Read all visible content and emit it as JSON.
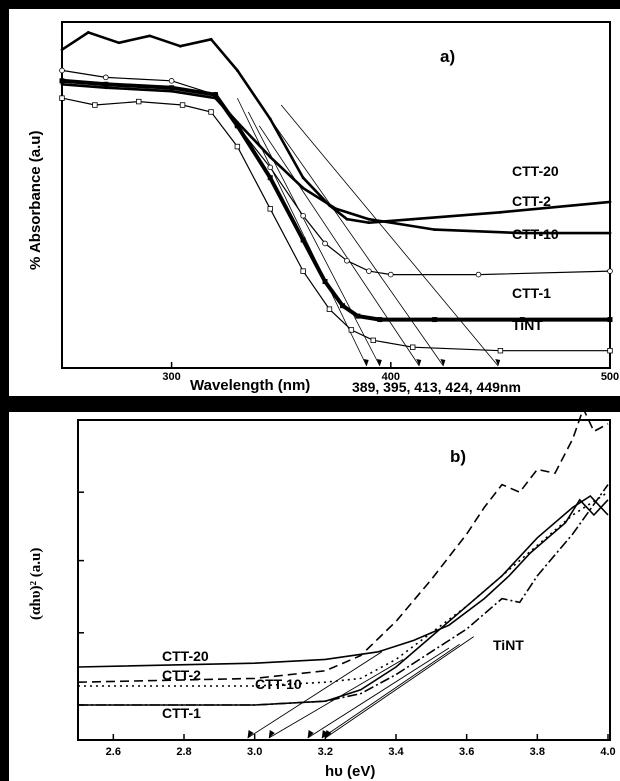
{
  "chart_data": [
    {
      "type": "line",
      "panel_label": "a)",
      "xlabel": "Wavelength (nm)",
      "ylabel": "% Absorbance (a.u)",
      "xlim": [
        250,
        500
      ],
      "ylim": [
        0,
        1.0
      ],
      "xticks": [
        300,
        400,
        500
      ],
      "annotation": "389, 395,  413, 424, 449nm",
      "edges": [
        389,
        395,
        413,
        424,
        449
      ],
      "series": [
        {
          "name": "CTT-20",
          "style": "solid-thick",
          "x": [
            250,
            262,
            276,
            290,
            304,
            318,
            330,
            345,
            360,
            372,
            380,
            390,
            410,
            450,
            500
          ],
          "y": [
            0.92,
            0.97,
            0.94,
            0.96,
            0.93,
            0.95,
            0.86,
            0.72,
            0.55,
            0.47,
            0.43,
            0.42,
            0.43,
            0.45,
            0.48
          ]
        },
        {
          "name": "CTT-2",
          "style": "solid",
          "x": [
            250,
            270,
            300,
            320,
            330,
            345,
            360,
            375,
            390,
            420,
            460,
            500
          ],
          "y": [
            0.82,
            0.81,
            0.8,
            0.78,
            0.71,
            0.61,
            0.52,
            0.46,
            0.43,
            0.4,
            0.39,
            0.39
          ]
        },
        {
          "name": "CTT-10",
          "style": "open-circles",
          "x": [
            250,
            270,
            300,
            320,
            330,
            345,
            360,
            370,
            380,
            390,
            400,
            440,
            500
          ],
          "y": [
            0.86,
            0.84,
            0.83,
            0.79,
            0.7,
            0.58,
            0.44,
            0.36,
            0.31,
            0.28,
            0.27,
            0.27,
            0.28
          ]
        },
        {
          "name": "CTT-1",
          "style": "filled-squares",
          "x": [
            250,
            270,
            300,
            320,
            330,
            345,
            360,
            370,
            378,
            385,
            395,
            420,
            460,
            500
          ],
          "y": [
            0.83,
            0.82,
            0.81,
            0.79,
            0.7,
            0.55,
            0.37,
            0.25,
            0.18,
            0.15,
            0.14,
            0.14,
            0.14,
            0.14
          ]
        },
        {
          "name": "TiNT",
          "style": "open-squares",
          "x": [
            250,
            265,
            285,
            305,
            318,
            330,
            345,
            360,
            372,
            382,
            392,
            410,
            450,
            500
          ],
          "y": [
            0.78,
            0.76,
            0.77,
            0.76,
            0.74,
            0.64,
            0.46,
            0.28,
            0.17,
            0.11,
            0.08,
            0.06,
            0.05,
            0.05
          ]
        }
      ]
    },
    {
      "type": "line",
      "panel_label": "b)",
      "xlabel": "hυ (eV)",
      "ylabel": "(αhυ)² (a.u)",
      "xlim": [
        2.5,
        4.0
      ],
      "ylim": [
        0,
        1.0
      ],
      "xticks": [
        "2.6",
        "2.8",
        "3.0",
        "3.2",
        "3.4",
        "3.6",
        "3.8",
        "4.0"
      ],
      "edges": [
        2.98,
        3.04,
        3.15,
        3.19,
        3.2
      ],
      "series": [
        {
          "name": "CTT-20",
          "style": "solid",
          "x": [
            2.5,
            3.0,
            3.2,
            3.35,
            3.45,
            3.55,
            3.65,
            3.72,
            3.78,
            3.83,
            3.88,
            3.92,
            3.96,
            4.0
          ],
          "y": [
            0.1,
            0.11,
            0.12,
            0.14,
            0.17,
            0.21,
            0.28,
            0.34,
            0.4,
            0.44,
            0.48,
            0.54,
            0.5,
            0.54
          ]
        },
        {
          "name": "CTT-2",
          "style": "dashed",
          "x": [
            2.5,
            3.0,
            3.2,
            3.3,
            3.4,
            3.5,
            3.6,
            3.65,
            3.7,
            3.75,
            3.8,
            3.85,
            3.9,
            3.93,
            3.96,
            4.0
          ],
          "y": [
            0.06,
            0.07,
            0.09,
            0.13,
            0.22,
            0.33,
            0.45,
            0.52,
            0.58,
            0.56,
            0.62,
            0.61,
            0.7,
            0.78,
            0.72,
            0.74
          ]
        },
        {
          "name": "CTT-10",
          "style": "dotted",
          "x": [
            2.5,
            3.0,
            3.2,
            3.3,
            3.4,
            3.5,
            3.6,
            3.7,
            3.8,
            3.9,
            4.0
          ],
          "y": [
            0.05,
            0.05,
            0.06,
            0.07,
            0.12,
            0.19,
            0.26,
            0.34,
            0.42,
            0.5,
            0.56
          ]
        },
        {
          "name": "CTT-1",
          "style": "solid",
          "x": [
            2.5,
            3.0,
            3.2,
            3.3,
            3.4,
            3.5,
            3.6,
            3.7,
            3.8,
            3.9,
            3.95,
            4.0
          ],
          "y": [
            0.0,
            0.0,
            0.01,
            0.04,
            0.1,
            0.18,
            0.26,
            0.34,
            0.44,
            0.52,
            0.55,
            0.5
          ]
        },
        {
          "name": "TiNT",
          "style": "dash-dot",
          "x": [
            2.5,
            3.0,
            3.2,
            3.3,
            3.4,
            3.5,
            3.6,
            3.7,
            3.75,
            3.8,
            3.9,
            4.0
          ],
          "y": [
            0.0,
            0.0,
            0.01,
            0.03,
            0.08,
            0.14,
            0.2,
            0.28,
            0.27,
            0.34,
            0.45,
            0.58
          ]
        }
      ]
    }
  ]
}
